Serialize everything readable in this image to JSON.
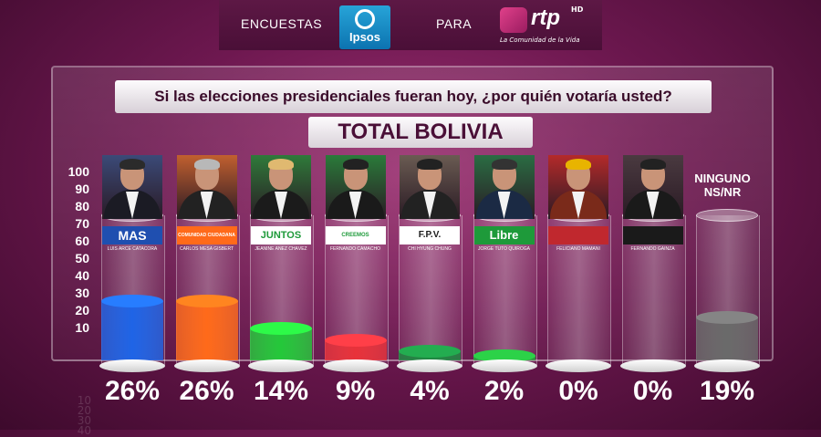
{
  "header": {
    "left_label": "ENCUESTAS",
    "ipsos_logo": "Ipsos",
    "middle_label": "PARA",
    "rtp_logo": "rtp",
    "rtp_hd": "HD",
    "rtp_tagline": "La Comunidad de la Vida"
  },
  "question": "Si las elecciones presidenciales fueran hoy, ¿por quién votaría usted?",
  "subtitle": "TOTAL BOLIVIA",
  "ninguno_label": [
    "NINGUNO",
    "NS/NR"
  ],
  "chart_data": {
    "type": "bar",
    "ylim": [
      0,
      100
    ],
    "yticks": [
      100,
      90,
      80,
      70,
      60,
      50,
      40,
      30,
      20,
      10
    ],
    "categories": [
      "LUIS ARCE CATACORA",
      "CARLOS MESA GISBERT",
      "JEANINE AÑEZ CHÁVEZ",
      "FERNANDO CAMACHO",
      "CHI HYUNG CHUNG",
      "JORGE TUTO QUIROGA",
      "FELICIANO MAMANI",
      "FERNANDO GAINZA",
      "NINGUNO NS/NR"
    ],
    "parties": [
      "MAS",
      "COMUNIDAD CIUDADANA",
      "JUNTOS",
      "CREEMOS",
      "F.P.V.",
      "Libre",
      "",
      "",
      ""
    ],
    "values": [
      26,
      26,
      14,
      9,
      4,
      2,
      0,
      0,
      19
    ],
    "labels": [
      "26%",
      "26%",
      "14%",
      "9%",
      "4%",
      "2%",
      "0%",
      "0%",
      "19%"
    ],
    "colors": [
      "#1f64e6",
      "#ff6a1a",
      "#24c83a",
      "#e8323a",
      "#1c8a40",
      "#23a83a",
      "#ffffff",
      "#ffffff",
      "#6a6a6a"
    ]
  }
}
